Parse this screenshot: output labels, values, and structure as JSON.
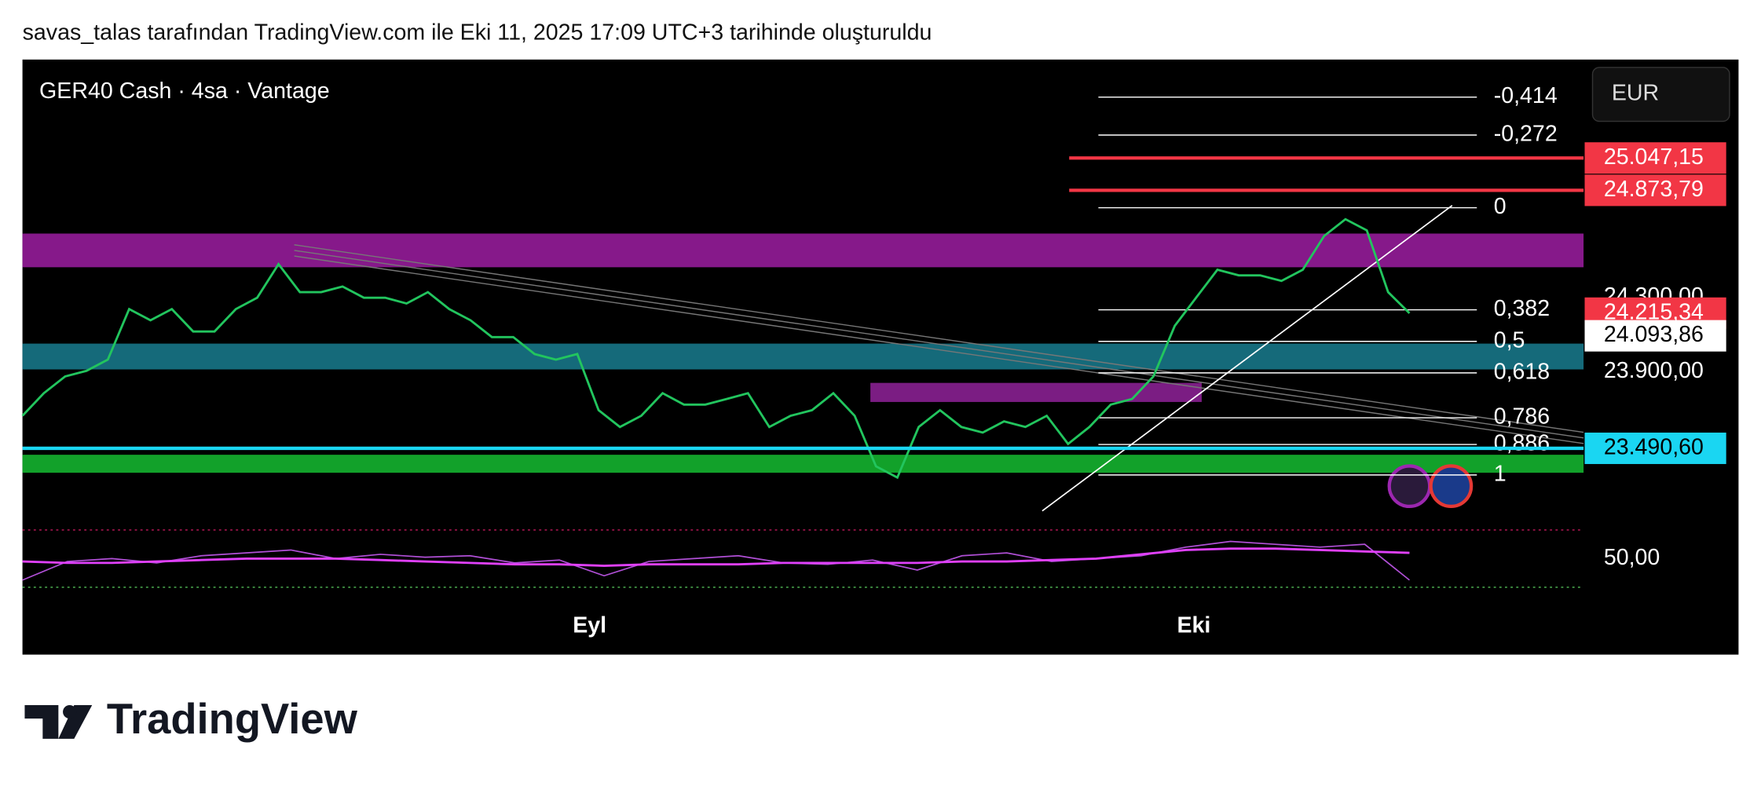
{
  "header": {
    "caption": "savas_talas tarafından TradingView.com ile Eki 11, 2025 17:09 UTC+3 tarihinde oluşturuldu"
  },
  "chart_data": {
    "type": "line",
    "title": "GER40 Cash · 4sa · Vantage",
    "currency": "EUR",
    "color": "#22c55e",
    "values": [
      23665,
      23786,
      23876,
      23906,
      23966,
      24237,
      24177,
      24237,
      24117,
      24117,
      24237,
      24298,
      24478,
      24328,
      24328,
      24358,
      24298,
      24298,
      24267,
      24328,
      24237,
      24177,
      24087,
      24087,
      23996,
      23966,
      23996,
      23695,
      23605,
      23665,
      23786,
      23725,
      23725,
      23755,
      23786,
      23605,
      23665,
      23695,
      23786,
      23665,
      23394,
      23334,
      23605,
      23695,
      23605,
      23575,
      23635,
      23605,
      23665,
      23514,
      23605,
      23725,
      23755,
      23876,
      24147,
      24298,
      24448,
      24418,
      24418,
      24388,
      24448,
      24629,
      24719,
      24659,
      24328,
      24215
    ],
    "ylim": [
      23125,
      25575
    ],
    "yticks": [
      {
        "value": 23900,
        "label": "23.900,00"
      },
      {
        "value": 24300,
        "label": "24.300,00"
      }
    ],
    "x_labels": [
      "Eyl",
      "Eki"
    ],
    "price_labels": [
      {
        "value": 25047.15,
        "label": "25.047,15",
        "color": "#f23645",
        "text_color": "#ffffff",
        "line": "ray"
      },
      {
        "value": 24873.79,
        "label": "24.873,79",
        "color": "#f23645",
        "text_color": "#ffffff",
        "line": "ray"
      },
      {
        "value": 24215.34,
        "label": "24.215,34",
        "color": "#f23645",
        "text_color": "#ffffff",
        "line": "none"
      },
      {
        "value": 24093.86,
        "label": "24.093,86",
        "color": "#ffffff",
        "text_color": "#000000",
        "line": "none"
      },
      {
        "value": 23490.6,
        "label": "23.490,60",
        "color": "#1ad6f2",
        "text_color": "#000000",
        "line": "full"
      }
    ],
    "fib_levels": [
      {
        "value": -0.414,
        "label": "-0,414"
      },
      {
        "value": -0.272,
        "label": "-0,272"
      },
      0,
      {
        "value": 0.382,
        "label": "0,382"
      },
      {
        "value": 0.5,
        "label": "0,5"
      },
      {
        "value": 0.618,
        "label": "0,618"
      },
      {
        "value": 0.786,
        "label": "0,786"
      },
      {
        "value": 0.886,
        "label": "0,886"
      },
      1
    ],
    "rsi": {
      "color": "#b04fd6",
      "ma_color": "#e040fb",
      "values": [
        35,
        48,
        50,
        47,
        52,
        54,
        56,
        50,
        53,
        51,
        52,
        47,
        49,
        38,
        48,
        50,
        52,
        47,
        46,
        49,
        42,
        52,
        54,
        48,
        50,
        52,
        58,
        62,
        60,
        58,
        60,
        35
      ],
      "ma": [
        48,
        47,
        47,
        48,
        49,
        50,
        50,
        50,
        49,
        48,
        47,
        46,
        46,
        45,
        46,
        46,
        46,
        47,
        47,
        47,
        47,
        48,
        48,
        49,
        50,
        53,
        56,
        57,
        57,
        56,
        55,
        54
      ],
      "ylim": [
        30,
        70
      ],
      "yticks": [
        {
          "value": 50,
          "label": "50,00"
        }
      ]
    }
  },
  "footer": {
    "logo": "TradingView"
  }
}
